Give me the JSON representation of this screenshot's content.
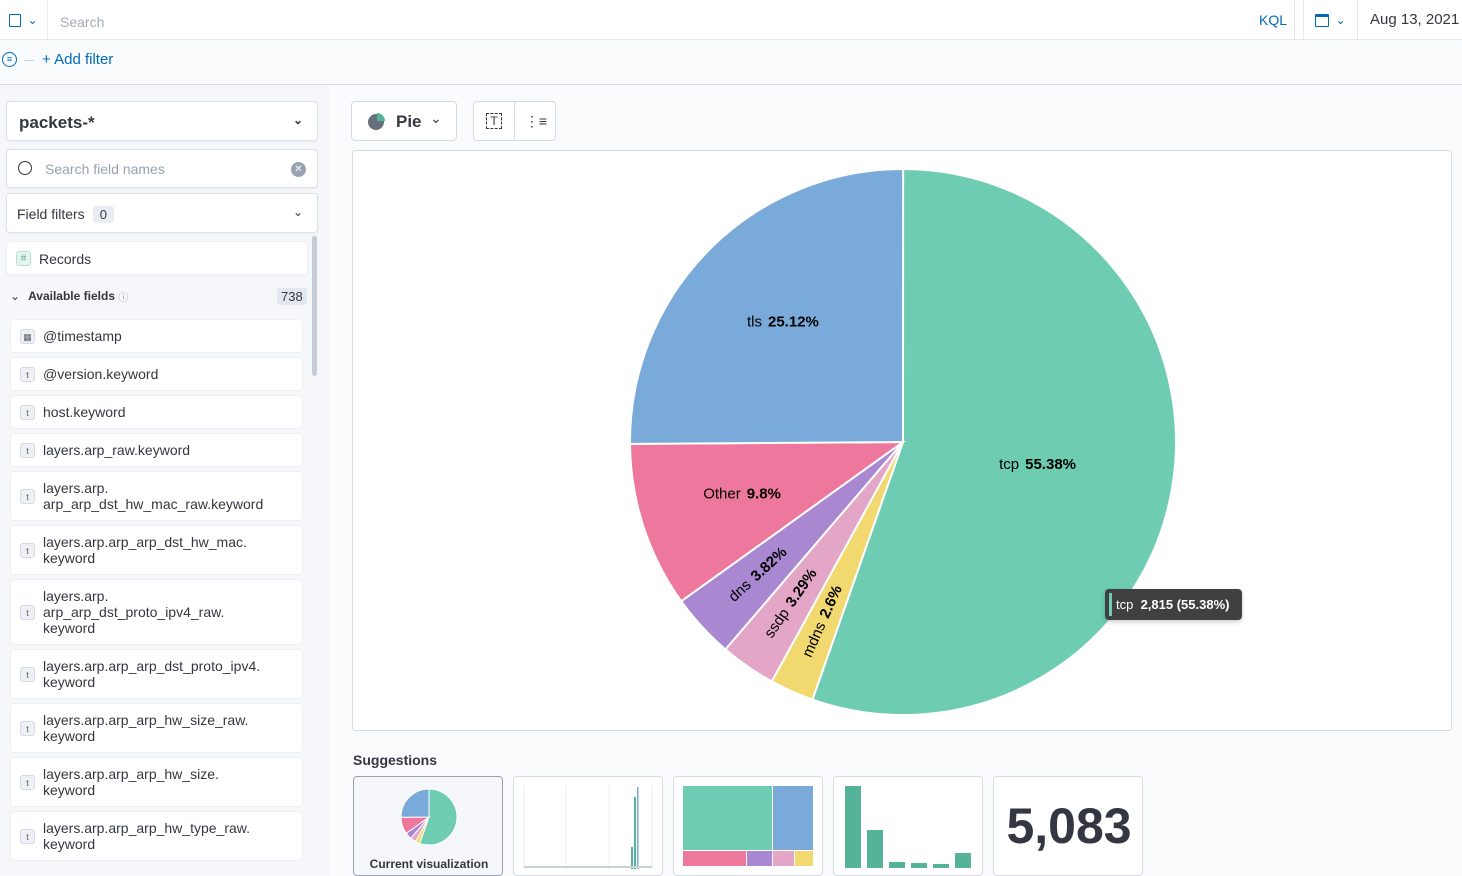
{
  "topbar": {
    "search_placeholder": "Search",
    "query_language": "KQL",
    "date": "Aug 13, 2021 @"
  },
  "filters": {
    "add_filter": "+ Add filter"
  },
  "sidebar": {
    "index_pattern": "packets-*",
    "field_search_placeholder": "Search field names",
    "field_filters_label": "Field filters",
    "field_filters_count": "0",
    "records_label": "Records",
    "available_fields_label": "Available fields",
    "available_fields_count": "738",
    "fields": [
      {
        "type": "date",
        "label": "@timestamp"
      },
      {
        "type": "t",
        "label": "@version.keyword"
      },
      {
        "type": "t",
        "label": "host.keyword"
      },
      {
        "type": "t",
        "label": "layers.arp_raw.keyword"
      },
      {
        "type": "t",
        "label": "layers.arp.\narp_arp_dst_hw_mac_raw.keyword"
      },
      {
        "type": "t",
        "label": "layers.arp.arp_arp_dst_hw_mac.\nkeyword"
      },
      {
        "type": "t",
        "label": "layers.arp.\narp_arp_dst_proto_ipv4_raw.\nkeyword"
      },
      {
        "type": "t",
        "label": "layers.arp.arp_arp_dst_proto_ipv4.\nkeyword"
      },
      {
        "type": "t",
        "label": "layers.arp.arp_arp_hw_size_raw.\nkeyword"
      },
      {
        "type": "t",
        "label": "layers.arp.arp_arp_hw_size.\nkeyword"
      },
      {
        "type": "t",
        "label": "layers.arp.arp_arp_hw_type_raw.\nkeyword"
      }
    ]
  },
  "workspace": {
    "chart_type": "Pie"
  },
  "chart_data": {
    "type": "pie",
    "slices": [
      {
        "label": "tcp",
        "percent": 55.38,
        "value_label": "55.38%",
        "color": "#6dccb1"
      },
      {
        "label": "mdns",
        "percent": 2.6,
        "value_label": "2.6%",
        "color": "#f1d86f"
      },
      {
        "label": "ssdp",
        "percent": 3.29,
        "value_label": "3.29%",
        "color": "#e4a6c7"
      },
      {
        "label": "dns",
        "percent": 3.82,
        "value_label": "3.82%",
        "color": "#a987d1"
      },
      {
        "label": "Other",
        "percent": 9.8,
        "value_label": "9.8%",
        "color": "#ee789d"
      },
      {
        "label": "tls",
        "percent": 25.12,
        "value_label": "25.12%",
        "color": "#79aad9"
      }
    ]
  },
  "tooltip": {
    "label": "tcp",
    "value": "2,815 (55.38%)"
  },
  "suggestions": {
    "title": "Suggestions",
    "current_label": "Current visualization",
    "metric_value": "5,083"
  }
}
